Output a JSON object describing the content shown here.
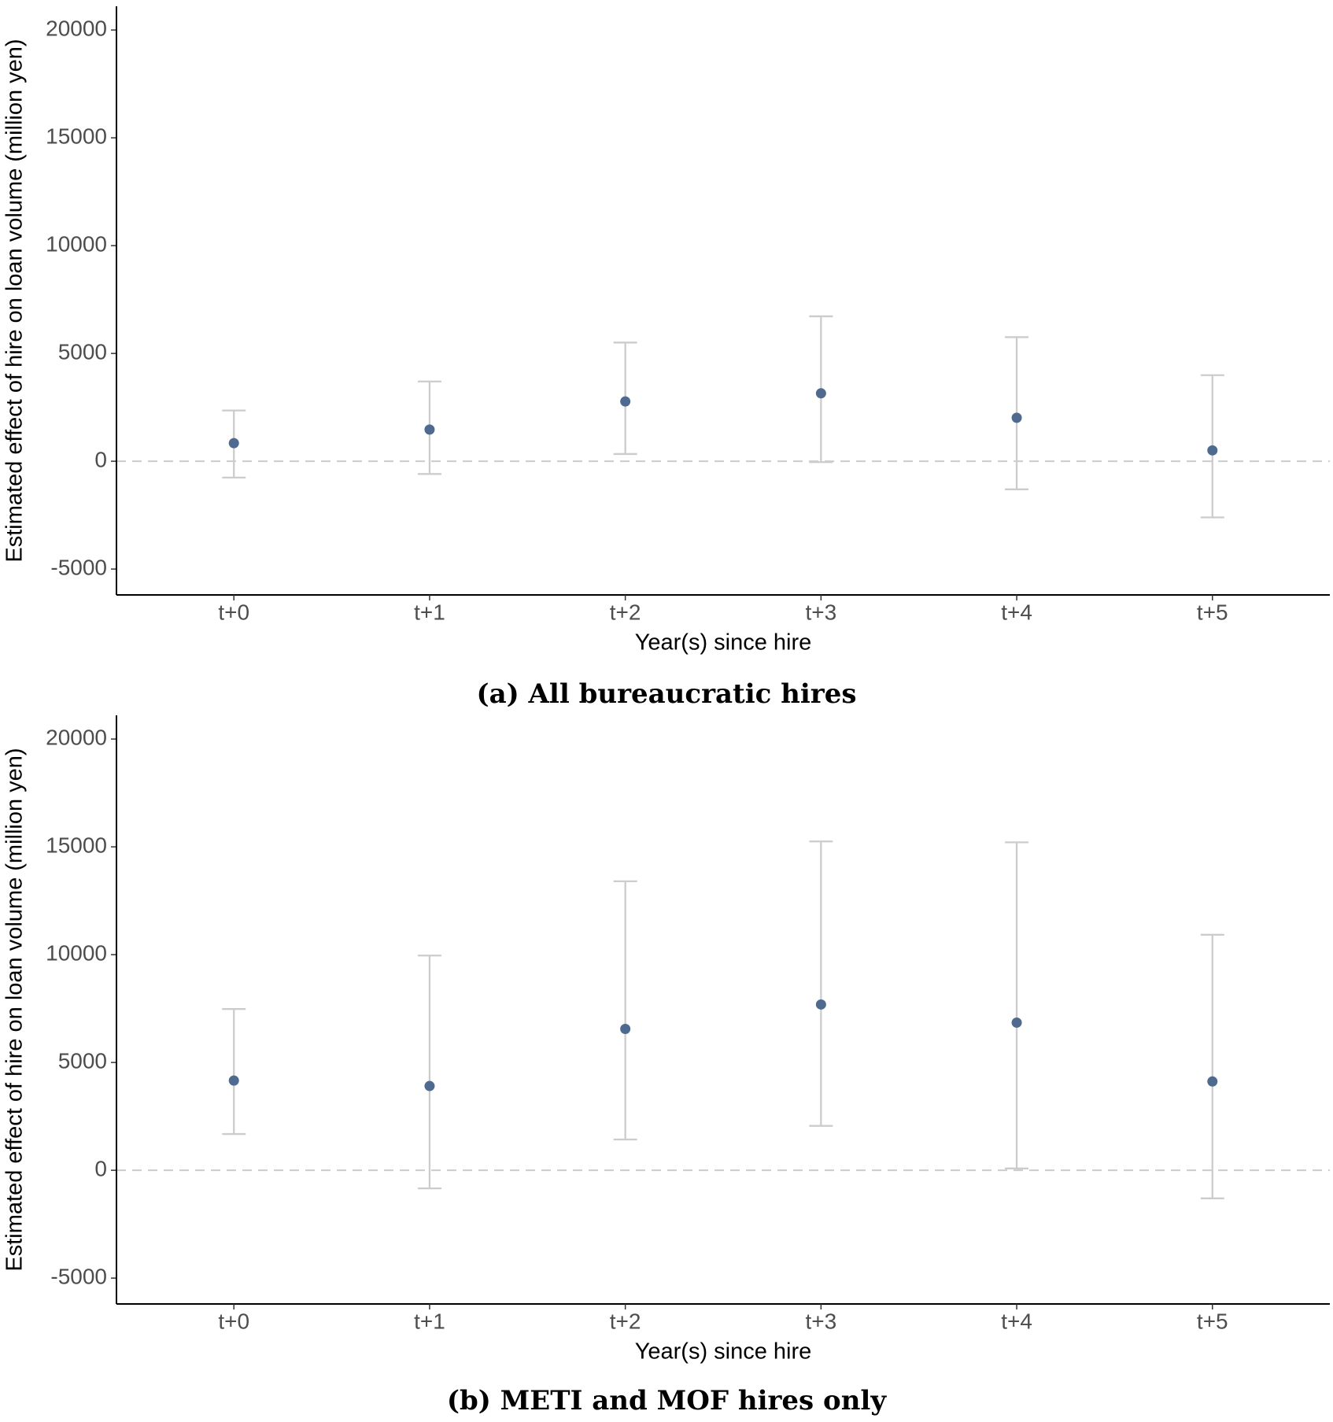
{
  "chart_data": [
    {
      "type": "errorbar",
      "caption": "(a) All bureaucratic hires",
      "x_label": "Year(s) since hire",
      "y_label": "Estimated effect of hire on loan volume (million yen)",
      "categories": [
        "t+0",
        "t+1",
        "t+2",
        "t+3",
        "t+4",
        "t+5"
      ],
      "values": [
        840,
        1470,
        2773,
        3151,
        2017,
        504
      ],
      "lower": [
        -756,
        -590,
        336,
        -42,
        -1303,
        -2605
      ],
      "upper": [
        2353,
        3700,
        5504,
        6723,
        5756,
        3992
      ],
      "color": "#4f6a8f",
      "error_color": "#cccccc",
      "ylim": [
        -6200,
        21100
      ],
      "yticks": [
        -5000,
        0,
        5000,
        10000,
        15000,
        20000
      ],
      "reference_line": 0
    },
    {
      "type": "errorbar",
      "caption": "(b) METI and MOF hires only",
      "x_label": "Year(s) since hire",
      "y_label": "Estimated effect of hire on loan volume (million yen)",
      "categories": [
        "t+0",
        "t+1",
        "t+2",
        "t+3",
        "t+4",
        "t+5"
      ],
      "values": [
        4160,
        3908,
        6555,
        7689,
        6849,
        4118
      ],
      "lower": [
        1681,
        -840,
        1429,
        2059,
        84,
        -1303
      ],
      "upper": [
        7479,
        9958,
        13403,
        15252,
        15210,
        10924
      ],
      "color": "#4f6a8f",
      "error_color": "#cccccc",
      "ylim": [
        -6200,
        21100
      ],
      "yticks": [
        -5000,
        0,
        5000,
        10000,
        15000,
        20000
      ],
      "reference_line": 0
    }
  ]
}
